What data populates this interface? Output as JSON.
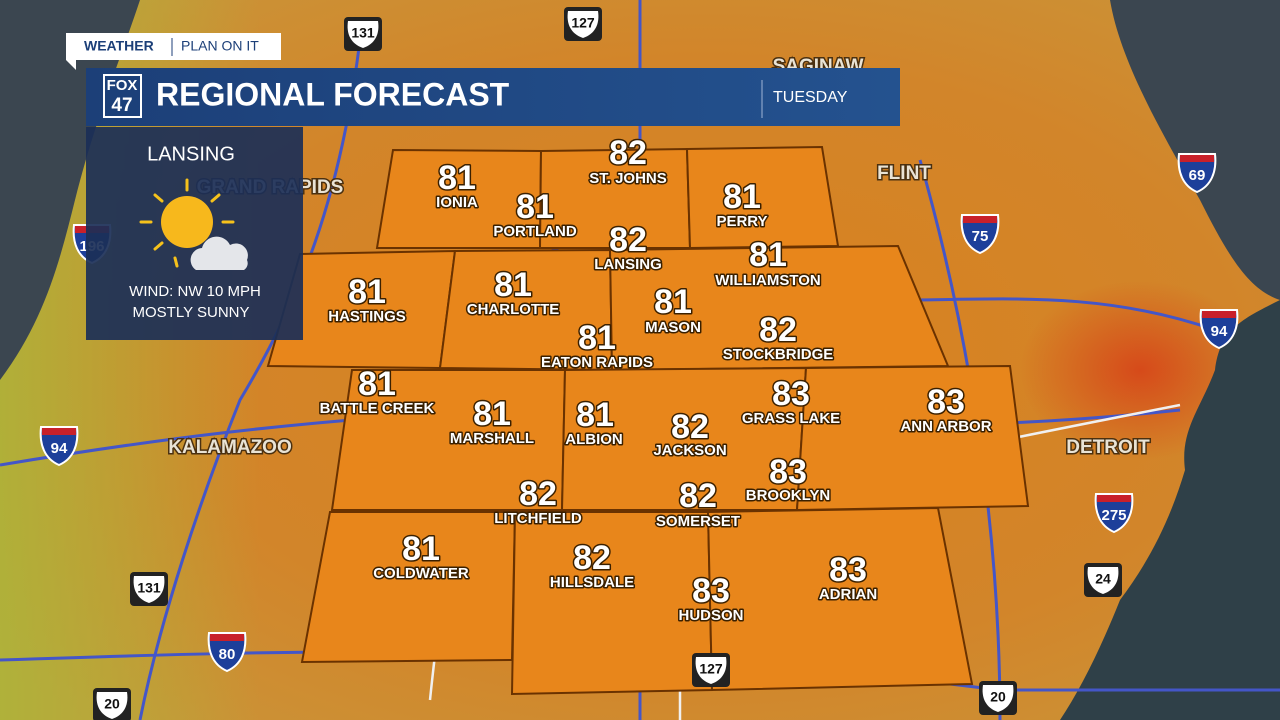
{
  "header": {
    "brand": "WEATHER",
    "tagline": "PLAN ON IT",
    "logo_top": "FOX",
    "logo_bottom": "47",
    "title": "REGIONAL FORECAST",
    "day": "TUESDAY"
  },
  "current": {
    "city": "LANSING",
    "wind": "WIND: NW 10 MPH",
    "condition": "MOSTLY SUNNY"
  },
  "map_labels": [
    "GRAND RAPIDS",
    "SAGINAW",
    "FLINT",
    "KALAMAZOO",
    "DETROIT"
  ],
  "shields": [
    "131",
    "127",
    "69",
    "196",
    "75",
    "94",
    "94",
    "275",
    "24",
    "131",
    "80",
    "127",
    "20",
    "20"
  ],
  "forecast": [
    {
      "city": "IONIA",
      "high": 81
    },
    {
      "city": "ST. JOHNS",
      "high": 82
    },
    {
      "city": "PORTLAND",
      "high": 81
    },
    {
      "city": "PERRY",
      "high": 81
    },
    {
      "city": "LANSING",
      "high": 82
    },
    {
      "city": "WILLIAMSTON",
      "high": 81
    },
    {
      "city": "HASTINGS",
      "high": 81
    },
    {
      "city": "CHARLOTTE",
      "high": 81
    },
    {
      "city": "MASON",
      "high": 81
    },
    {
      "city": "EATON RAPIDS",
      "high": 81
    },
    {
      "city": "STOCKBRIDGE",
      "high": 82
    },
    {
      "city": "BATTLE CREEK",
      "high": 81
    },
    {
      "city": "MARSHALL",
      "high": 81
    },
    {
      "city": "ALBION",
      "high": 81
    },
    {
      "city": "GRASS LAKE",
      "high": 83
    },
    {
      "city": "ANN ARBOR",
      "high": 83
    },
    {
      "city": "JACKSON",
      "high": 82
    },
    {
      "city": "BROOKLYN",
      "high": 83
    },
    {
      "city": "LITCHFIELD",
      "high": 82
    },
    {
      "city": "SOMERSET",
      "high": 82
    },
    {
      "city": "COLDWATER",
      "high": 81
    },
    {
      "city": "HILLSDALE",
      "high": 82
    },
    {
      "city": "ADRIAN",
      "high": 83
    },
    {
      "city": "HUDSON",
      "high": 83
    }
  ]
}
